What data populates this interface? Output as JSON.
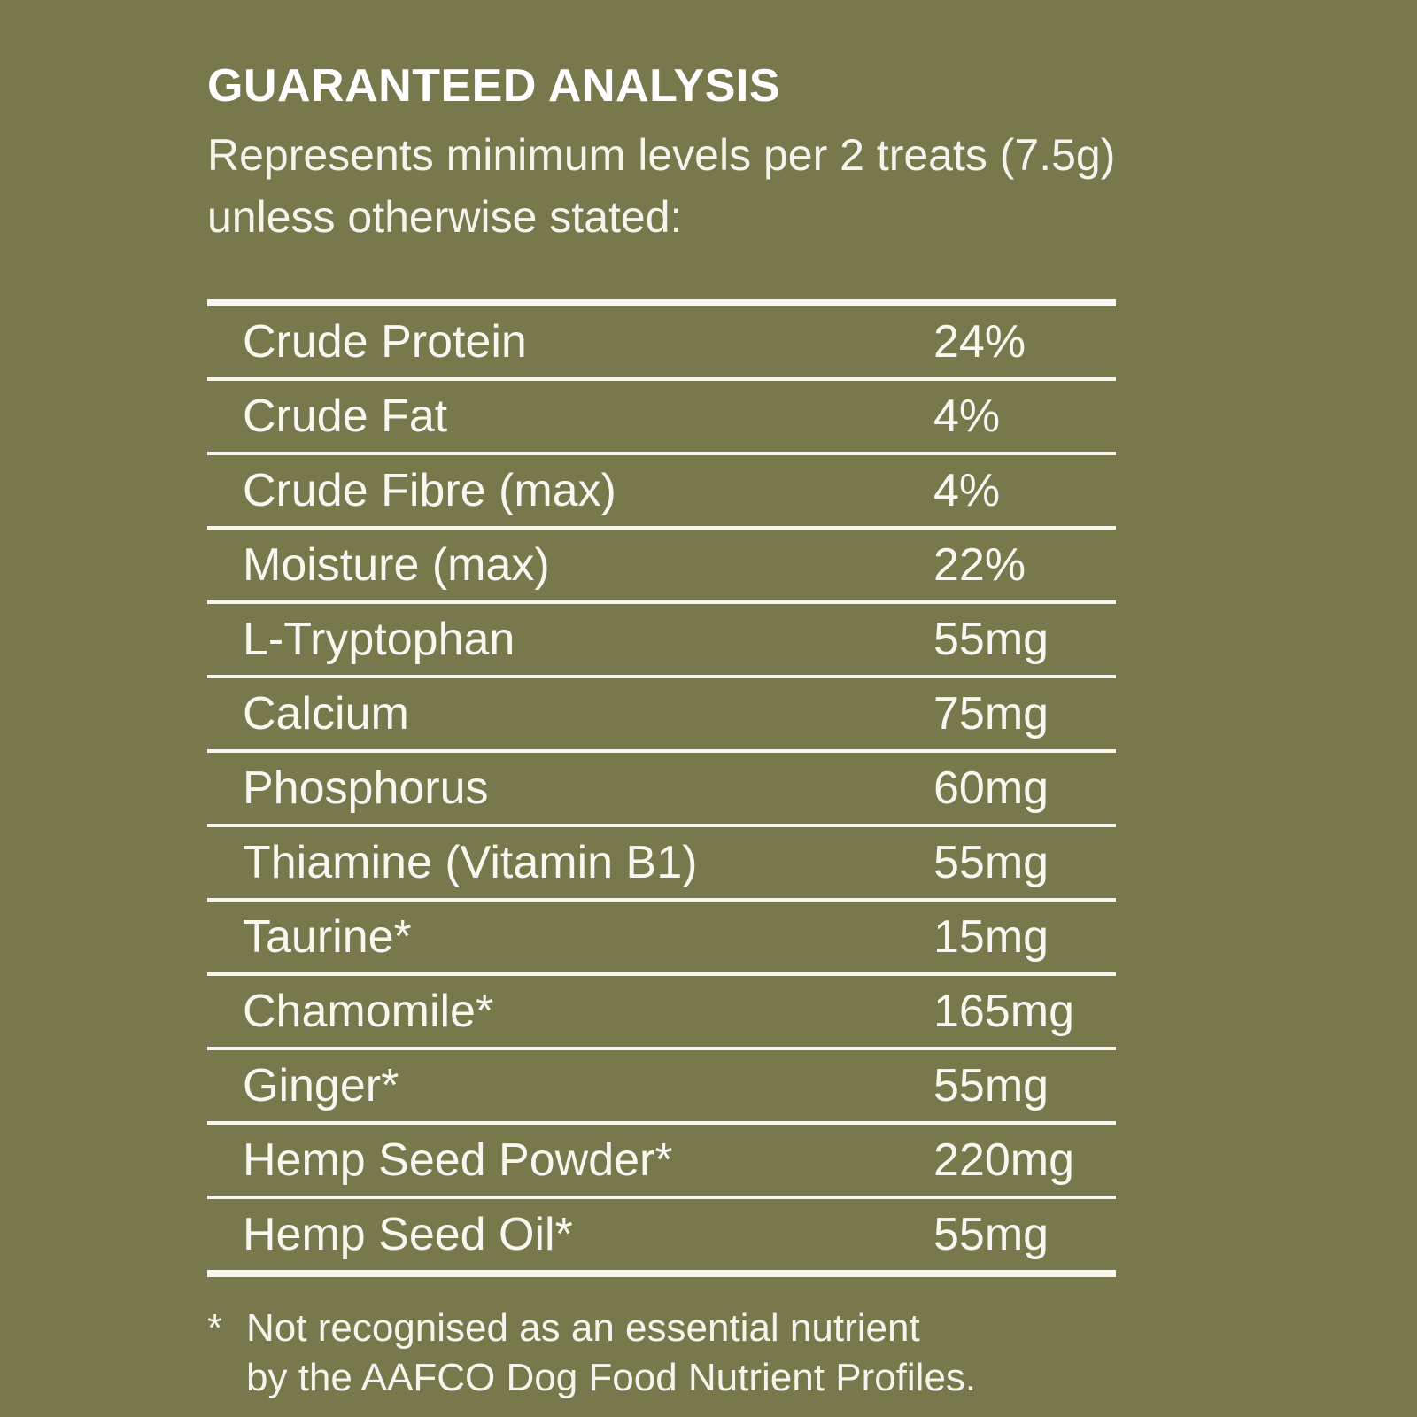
{
  "title": "GUARANTEED ANALYSIS",
  "subtitle": "Represents minimum levels per 2 treats (7.5g) unless otherwise stated:",
  "rows": [
    {
      "label": "Crude Protein",
      "value": "24%"
    },
    {
      "label": "Crude Fat",
      "value": "4%"
    },
    {
      "label": "Crude Fibre (max)",
      "value": "4%"
    },
    {
      "label": "Moisture (max)",
      "value": "22%"
    },
    {
      "label": "L-Tryptophan",
      "value": "55mg"
    },
    {
      "label": "Calcium",
      "value": "75mg"
    },
    {
      "label": "Phosphorus",
      "value": "60mg"
    },
    {
      "label": "Thiamine (Vitamin B1)",
      "value": "55mg"
    },
    {
      "label": "Taurine*",
      "value": "15mg"
    },
    {
      "label": "Chamomile*",
      "value": "165mg"
    },
    {
      "label": "Ginger*",
      "value": "55mg"
    },
    {
      "label": "Hemp Seed Powder*",
      "value": "220mg"
    },
    {
      "label": "Hemp Seed Oil*",
      "value": "55mg"
    }
  ],
  "footnote": {
    "marker": "*",
    "line1": "Not recognised as an essential nutrient",
    "line2": "by the AAFCO Dog Food Nutrient Profiles."
  },
  "colors": {
    "background": "#77784c",
    "text": "#f7f7f0"
  }
}
